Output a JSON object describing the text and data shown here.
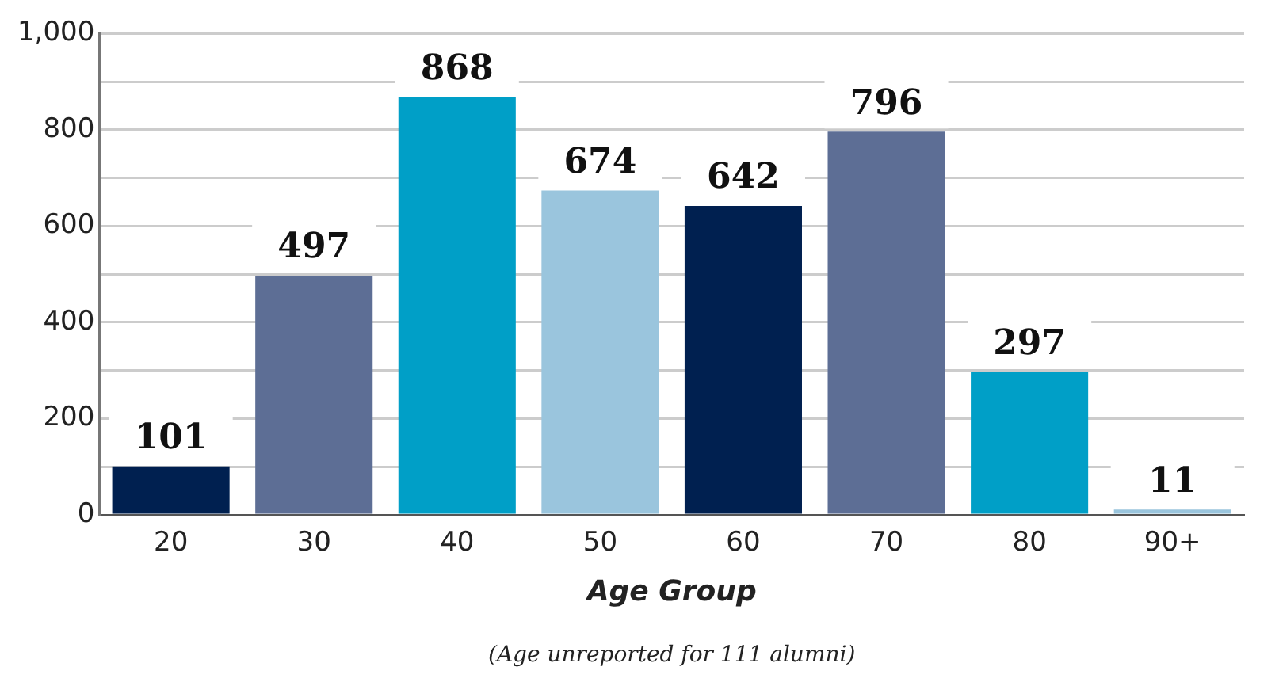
{
  "chart_data": {
    "type": "bar",
    "xlabel": "Age Group",
    "categories": [
      "20",
      "30",
      "40",
      "50",
      "60",
      "70",
      "80",
      "90+"
    ],
    "values": [
      101,
      497,
      868,
      674,
      642,
      796,
      297,
      11
    ],
    "colors": [
      "#002050",
      "#5d6e95",
      "#009fc7",
      "#9ac5dd",
      "#002050",
      "#5d6e95",
      "#009fc7",
      "#9ac5dd"
    ],
    "ylim": [
      0,
      1000
    ],
    "yticks": [
      0,
      {
        "value": 100,
        "label": null
      },
      200,
      {
        "value": 300,
        "label": null
      },
      400,
      {
        "value": 500,
        "label": null
      },
      600,
      {
        "value": 700,
        "label": null
      },
      800,
      {
        "value": 900,
        "label": null
      },
      {
        "value": 1000,
        "label": "1,000"
      }
    ],
    "grid": "y",
    "data_labels": true,
    "legend": false,
    "annotations": [
      "(Age unreported for 111 alumni)"
    ]
  }
}
